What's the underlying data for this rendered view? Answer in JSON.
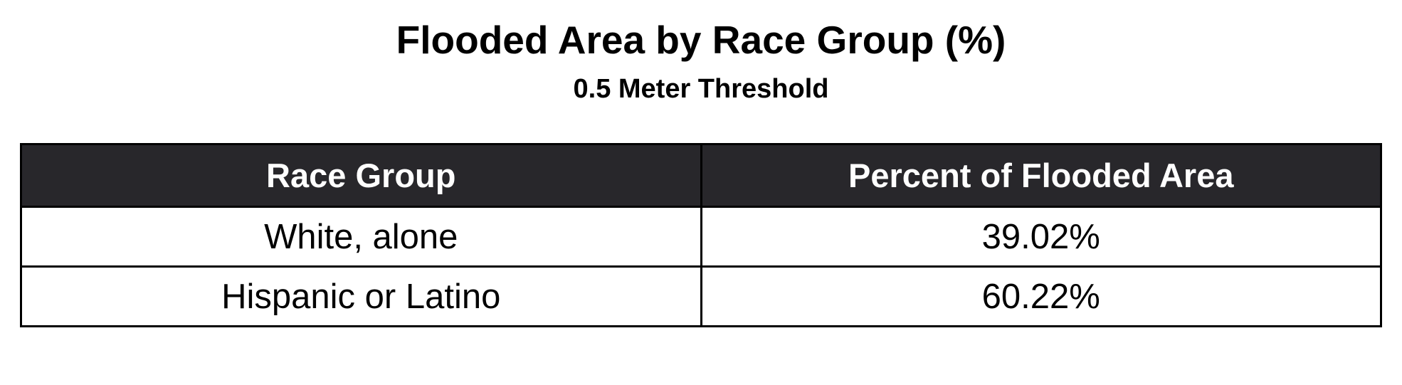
{
  "chart_data": {
    "type": "table",
    "title": "Flooded Area by Race Group (%)",
    "subtitle": "0.5 Meter Threshold",
    "columns": [
      "Race Group",
      "Percent of Flooded Area"
    ],
    "rows": [
      [
        "White, alone",
        "39.02%"
      ],
      [
        "Hispanic or Latino",
        "60.22%"
      ]
    ],
    "values": [
      39.02,
      60.22
    ],
    "colors": {
      "header_background": "#28272b",
      "header_text": "#ffffff",
      "border": "#000000"
    }
  }
}
